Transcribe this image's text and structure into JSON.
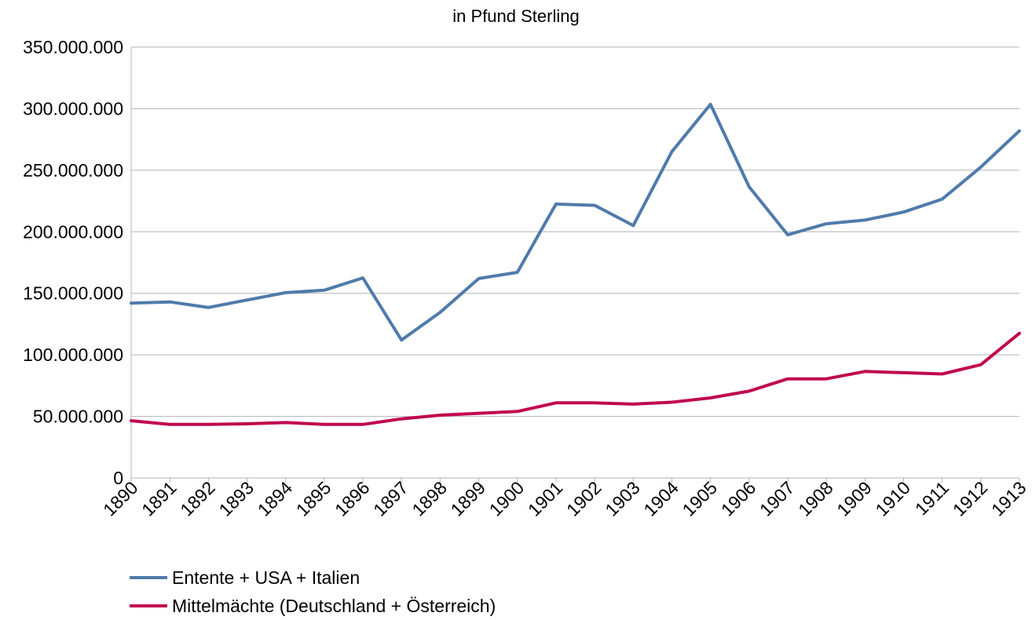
{
  "chart_data": {
    "type": "line",
    "title": "in Pfund Sterling",
    "xlabel": "",
    "ylabel": "",
    "categories": [
      "1890",
      "1891",
      "1892",
      "1893",
      "1894",
      "1895",
      "1896",
      "1897",
      "1898",
      "1899",
      "1900",
      "1901",
      "1902",
      "1903",
      "1904",
      "1905",
      "1906",
      "1907",
      "1908",
      "1909",
      "1910",
      "1911",
      "1912",
      "1913"
    ],
    "ylim": [
      0,
      350000000
    ],
    "yticks": [
      0,
      50000000,
      100000000,
      150000000,
      200000000,
      250000000,
      300000000,
      350000000
    ],
    "ytick_labels": [
      "0",
      "50.000.000",
      "100.000.000",
      "150.000.000",
      "200.000.000",
      "250.000.000",
      "300.000.000",
      "350.000.000"
    ],
    "grid": true,
    "legend_position": "bottom-left",
    "series": [
      {
        "name": "Entente + USA + Italien",
        "color": "#4f7bab",
        "values": [
          142000000,
          143000000,
          138500000,
          144500000,
          150500000,
          152500000,
          162500000,
          112000000,
          134500000,
          162000000,
          167000000,
          222500000,
          221500000,
          205000000,
          265000000,
          303500000,
          236500000,
          197500000,
          206500000,
          209500000,
          216000000,
          226500000,
          252500000,
          282000000
        ]
      },
      {
        "name": "Mittelmächte (Deutschland + Österreich)",
        "color": "#c0064e",
        "values": [
          46500000,
          43500000,
          43500000,
          44000000,
          45000000,
          43500000,
          43500000,
          48000000,
          51000000,
          52500000,
          54000000,
          61000000,
          61000000,
          60000000,
          61500000,
          65000000,
          70500000,
          80500000,
          80500000,
          86500000,
          85500000,
          84500000,
          92000000,
          117500000
        ]
      }
    ]
  }
}
